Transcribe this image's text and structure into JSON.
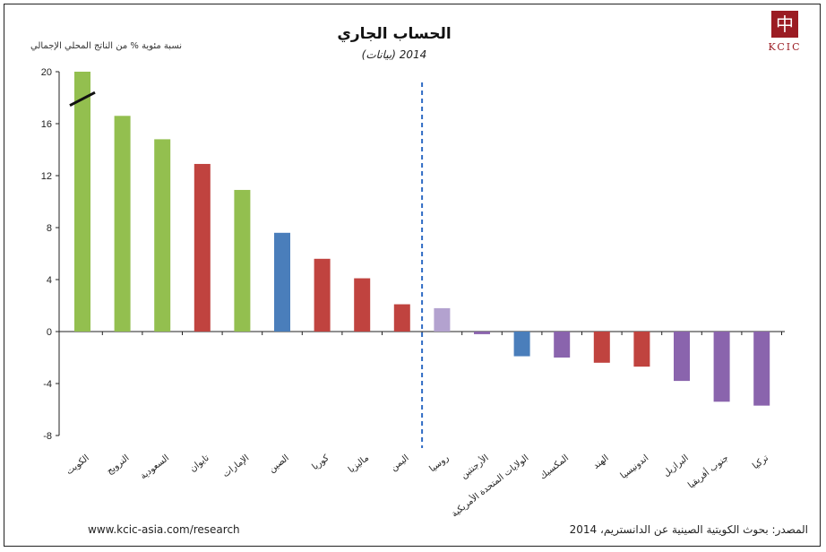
{
  "title": "الحساب الجاري",
  "subtitle": "2014 (بيانات)",
  "ylabel": "نسبة مئوية % من الناتج المحلي الإجمالي",
  "logo": {
    "text": "KCIC",
    "glyph": "中国"
  },
  "footer": {
    "url": "www.kcic-asia.com/research",
    "source": "المصدر: بحوث الكويتية الصينية عن الدانستريم، 2014"
  },
  "colors": {
    "green": "#93bf4f",
    "red": "#c0433f",
    "blue": "#4a7ebb",
    "purple": "#8a64ad",
    "light_purple": "#b3a2cf",
    "divider": "#2f6bc4"
  },
  "chart_data": {
    "type": "bar",
    "ylim": [
      -8,
      20
    ],
    "yticks": [
      20,
      16,
      12,
      8,
      4,
      0,
      -4,
      -8
    ],
    "grid": false,
    "categories": [
      "الكويت",
      "النرويج",
      "السعودية",
      "تايوان",
      "الإمارات",
      "الصين",
      "كوريا",
      "ماليزيا",
      "اليمن",
      "روسيا",
      "الأرجنتين",
      "الولايات المتحدة الأمريكية",
      "المكسيك",
      "الهند",
      "اندونيسيا",
      "البرازيل",
      "جنوب أفريقيا",
      "تركيا"
    ],
    "values": [
      20,
      16.6,
      14.8,
      12.9,
      10.9,
      7.6,
      5.6,
      4.1,
      2.1,
      1.8,
      -0.2,
      -1.9,
      -2.0,
      -2.4,
      -2.7,
      -3.8,
      -5.4,
      -5.7
    ],
    "colors": [
      "green",
      "green",
      "green",
      "red",
      "green",
      "blue",
      "red",
      "red",
      "red",
      "light_purple",
      "purple",
      "blue",
      "purple",
      "red",
      "red",
      "purple",
      "purple",
      "purple"
    ],
    "truncated_first_bar": true,
    "divider_after_index": 8
  }
}
